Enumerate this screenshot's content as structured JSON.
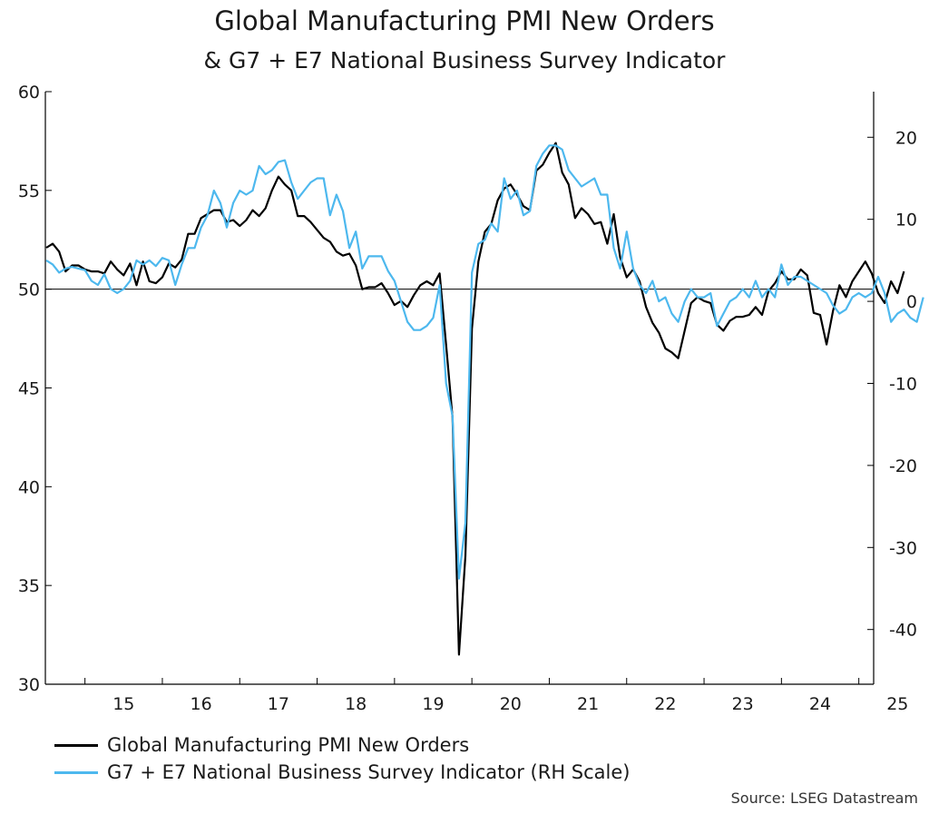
{
  "chart_data": {
    "type": "line",
    "title": "Global Manufacturing PMI New Orders",
    "subtitle": "& G7 + E7 National Business Survey Indicator",
    "source": "Source: LSEG Datastream",
    "x_start": "2014-07",
    "x_tick_labels": [
      "15",
      "16",
      "17",
      "18",
      "19",
      "20",
      "21",
      "22",
      "23",
      "24",
      "25"
    ],
    "y_left": {
      "min": 30,
      "max": 60,
      "ticks": [
        "30",
        "35",
        "40",
        "45",
        "50",
        "55",
        "60"
      ],
      "reference_line": 50
    },
    "y_right": {
      "min": -46.67,
      "max": 25.56,
      "ticks": [
        "-40",
        "-30",
        "-20",
        "-10",
        "0",
        "10",
        "20"
      ]
    },
    "grid": false,
    "legend_position": "bottom-left",
    "series": [
      {
        "name": "Global Manufacturing PMI New Orders",
        "axis": "left",
        "color": "#000000",
        "values": [
          52.1,
          52.3,
          51.9,
          50.9,
          51.2,
          51.2,
          51.0,
          50.9,
          50.9,
          50.8,
          51.4,
          51.0,
          50.7,
          51.3,
          50.2,
          51.4,
          50.4,
          50.3,
          50.6,
          51.3,
          51.1,
          51.5,
          52.8,
          52.8,
          53.6,
          53.8,
          54.0,
          54.0,
          53.4,
          53.5,
          53.2,
          53.5,
          54.0,
          53.7,
          54.1,
          55.0,
          55.7,
          55.3,
          55.0,
          53.7,
          53.7,
          53.4,
          53.0,
          52.6,
          52.4,
          51.9,
          51.7,
          51.8,
          51.2,
          50.0,
          50.1,
          50.1,
          50.3,
          49.8,
          49.2,
          49.4,
          49.1,
          49.7,
          50.2,
          50.4,
          50.2,
          50.8,
          47.2,
          43.5,
          31.5,
          36.5,
          48.0,
          51.4,
          52.9,
          53.3,
          54.5,
          55.1,
          55.3,
          54.8,
          54.2,
          54.0,
          56.0,
          56.3,
          56.9,
          57.4,
          55.9,
          55.3,
          53.6,
          54.1,
          53.8,
          53.3,
          53.4,
          52.3,
          53.8,
          51.6,
          50.6,
          51.0,
          50.4,
          49.1,
          48.3,
          47.8,
          47.0,
          46.8,
          46.5,
          47.9,
          49.3,
          49.6,
          49.4,
          49.3,
          48.2,
          47.9,
          48.4,
          48.6,
          48.6,
          48.7,
          49.1,
          48.7,
          49.9,
          50.3,
          50.9,
          50.5,
          50.5,
          51.0,
          50.7,
          48.8,
          48.7,
          47.2,
          48.9,
          50.2,
          49.6,
          50.4,
          50.9,
          51.4,
          50.8,
          49.8,
          49.3,
          50.4,
          49.8,
          50.9
        ]
      },
      {
        "name": "G7 + E7 National Business Survey Indicator (RH Scale)",
        "axis": "right",
        "color": "#4db8ee",
        "values": [
          5.0,
          4.5,
          3.5,
          4.0,
          4.2,
          4.0,
          3.8,
          2.5,
          2.0,
          3.3,
          1.5,
          1.0,
          1.5,
          2.5,
          5.0,
          4.5,
          5.0,
          4.3,
          5.3,
          5.0,
          2.0,
          4.5,
          6.5,
          6.5,
          9.0,
          10.5,
          13.5,
          12.0,
          9.0,
          12.0,
          13.5,
          13.0,
          13.5,
          16.5,
          15.5,
          16.0,
          17.0,
          17.2,
          14.5,
          12.5,
          13.5,
          14.5,
          15.0,
          15.0,
          10.5,
          13.0,
          11.0,
          6.5,
          8.5,
          4.0,
          5.5,
          5.5,
          5.5,
          3.7,
          2.5,
          0.0,
          -2.5,
          -3.5,
          -3.5,
          -3.0,
          -2.0,
          2.0,
          -10.0,
          -14.0,
          -33.8,
          -27.0,
          3.5,
          7.0,
          7.5,
          9.5,
          8.5,
          15.0,
          12.5,
          13.5,
          10.5,
          11.0,
          16.5,
          18.0,
          19.0,
          19.0,
          18.5,
          16.0,
          15.0,
          14.0,
          14.5,
          15.0,
          13.0,
          13.0,
          6.5,
          4.0,
          8.5,
          4.0,
          2.0,
          1.0,
          2.5,
          0.0,
          0.5,
          -1.5,
          -2.5,
          0.0,
          1.5,
          0.5,
          0.5,
          1.0,
          -3.0,
          -1.5,
          0.0,
          0.5,
          1.5,
          0.5,
          2.5,
          0.5,
          1.5,
          0.5,
          4.5,
          2.0,
          3.0,
          3.0,
          2.5,
          2.0,
          1.5,
          1.0,
          -0.5,
          -1.5,
          -1.0,
          0.5,
          1.0,
          0.5,
          1.0,
          3.0,
          1.0,
          -2.5,
          -1.5,
          -1.0,
          -2.0,
          -2.5,
          0.5
        ]
      }
    ]
  }
}
